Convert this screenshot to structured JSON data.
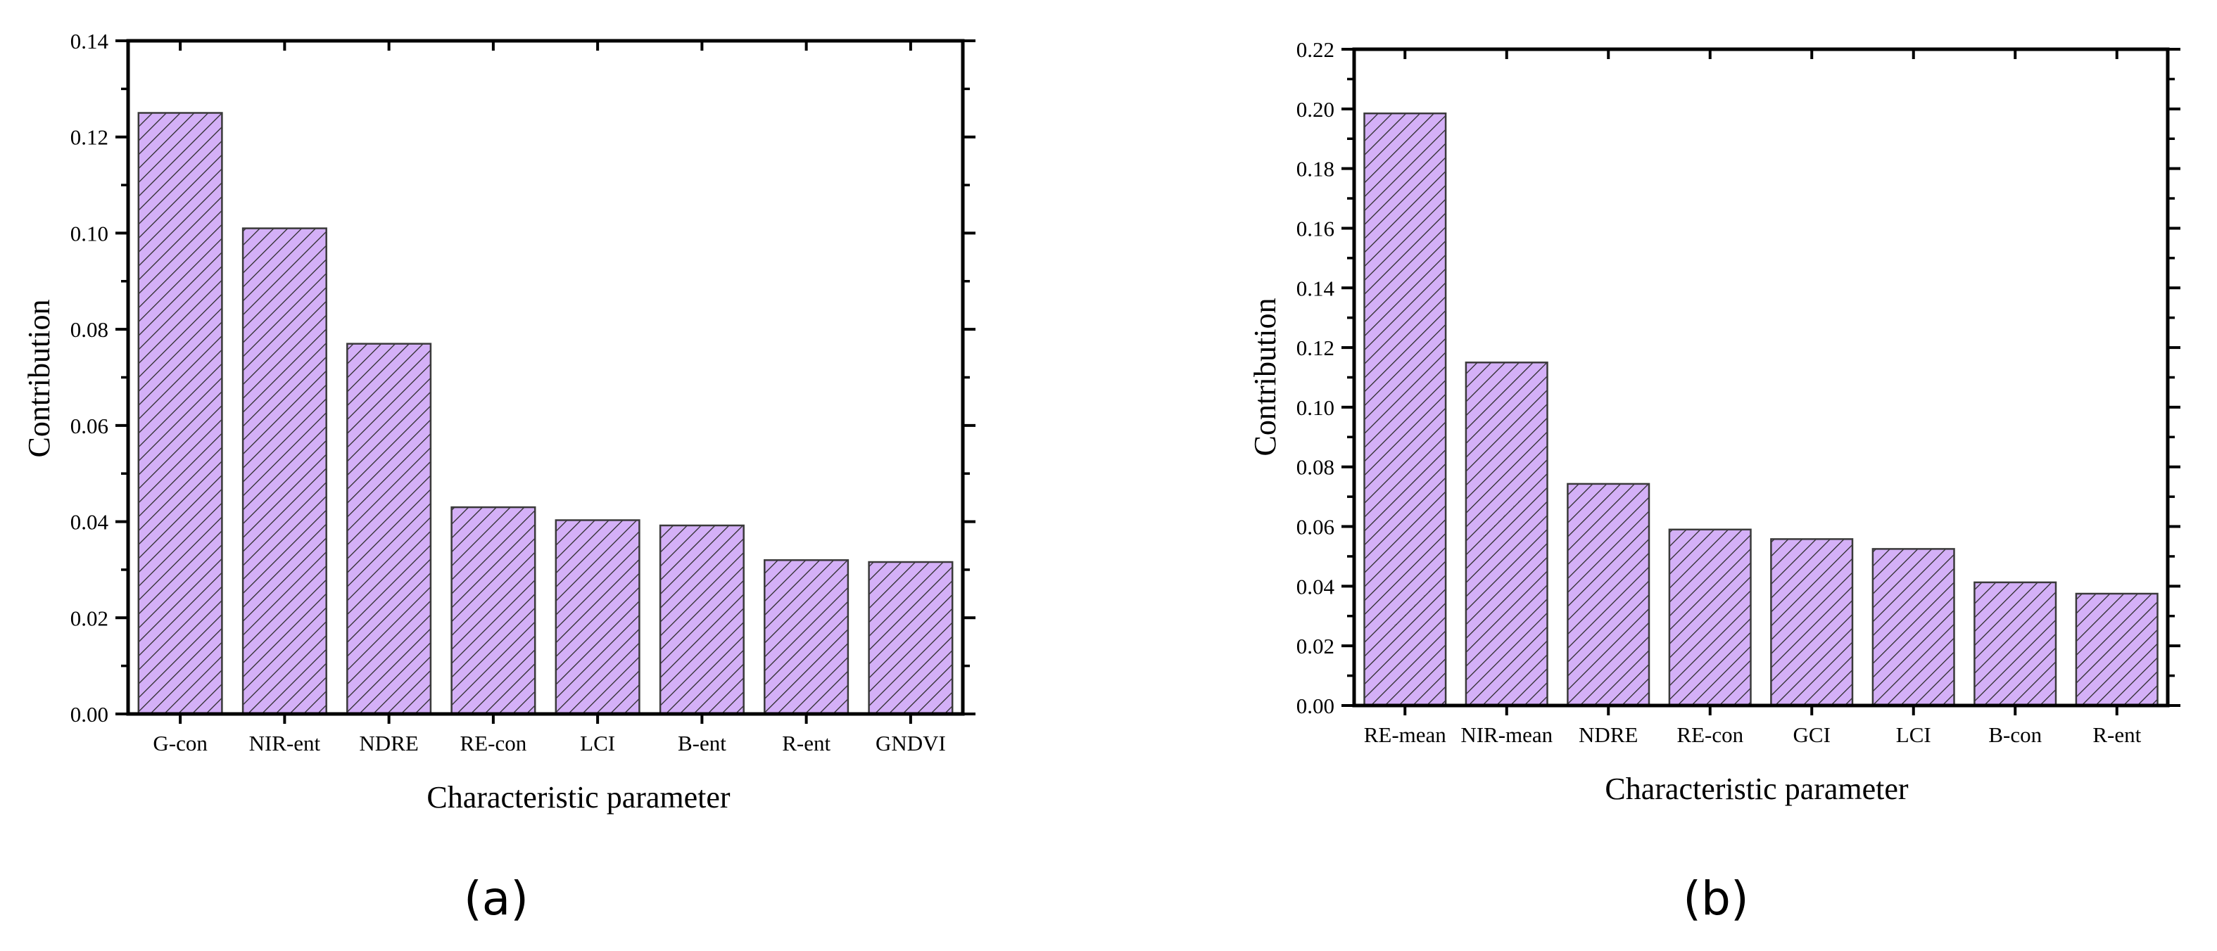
{
  "colors": {
    "bar_fill": "#d4b0f7",
    "bar_stroke": "#3a3a3a",
    "hatch": "#2a2a2a",
    "axis": "#000000"
  },
  "chart_data": [
    {
      "panel_label": "(a)",
      "type": "bar",
      "xlabel": "Characteristic parameter",
      "ylabel": "Contribution",
      "ylim": [
        0,
        0.14
      ],
      "ytick_step": 0.02,
      "yticks": [
        "0.00",
        "0.02",
        "0.04",
        "0.06",
        "0.08",
        "0.10",
        "0.12",
        "0.14"
      ],
      "categories": [
        "G-con",
        "NIR-ent",
        "NDRE",
        "RE-con",
        "LCI",
        "B-ent",
        "R-ent",
        "GNDVI"
      ],
      "values": [
        0.125,
        0.101,
        0.077,
        0.043,
        0.0403,
        0.0392,
        0.032,
        0.0316
      ],
      "grid": false,
      "legend": "none"
    },
    {
      "panel_label": "(b)",
      "type": "bar",
      "xlabel": "Characteristic parameter",
      "ylabel": "Contribution",
      "ylim": [
        0,
        0.22
      ],
      "ytick_step": 0.02,
      "yticks": [
        "0.00",
        "0.02",
        "0.04",
        "0.06",
        "0.08",
        "0.10",
        "0.12",
        "0.14",
        "0.16",
        "0.18",
        "0.20",
        "0.22"
      ],
      "categories": [
        "RE-mean",
        "NIR-mean",
        "NDRE",
        "RE-con",
        "GCI",
        "LCI",
        "B-con",
        "R-ent"
      ],
      "values": [
        0.1985,
        0.115,
        0.0743,
        0.059,
        0.0558,
        0.0525,
        0.0413,
        0.0375
      ],
      "grid": false,
      "legend": "none"
    }
  ]
}
